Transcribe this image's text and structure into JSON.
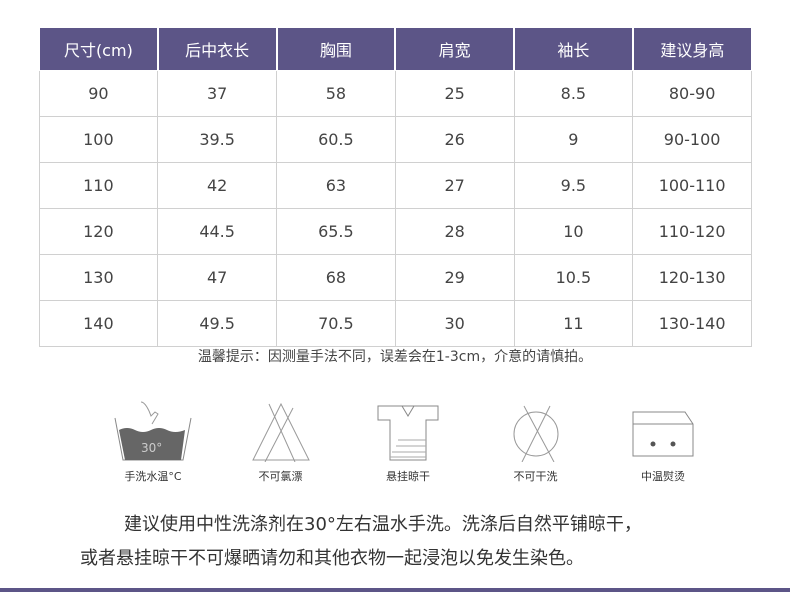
{
  "table": {
    "headers": [
      "尺寸(cm)",
      "后中衣长",
      "胸围",
      "肩宽",
      "袖长",
      "建议身高"
    ],
    "rows": [
      [
        "90",
        "37",
        "58",
        "25",
        "8.5",
        "80-90"
      ],
      [
        "100",
        "39.5",
        "60.5",
        "26",
        "9",
        "90-100"
      ],
      [
        "110",
        "42",
        "63",
        "27",
        "9.5",
        "100-110"
      ],
      [
        "120",
        "44.5",
        "65.5",
        "28",
        "10",
        "110-120"
      ],
      [
        "130",
        "47",
        "68",
        "29",
        "10.5",
        "120-130"
      ],
      [
        "140",
        "49.5",
        "70.5",
        "30",
        "11",
        "130-140"
      ]
    ]
  },
  "note": "温馨提示：因测量手法不同，误差会在1-3cm，介意的请慎拍。",
  "care_icons": [
    {
      "icon": "hand-wash-icon",
      "label": "手洗水温°C",
      "temp": "30°"
    },
    {
      "icon": "no-bleach-icon",
      "label": "不可氯漂"
    },
    {
      "icon": "hang-dry-icon",
      "label": "悬挂晾干"
    },
    {
      "icon": "no-dry-clean-icon",
      "label": "不可干洗"
    },
    {
      "icon": "iron-medium-icon",
      "label": "中温熨烫"
    }
  ],
  "care_text": [
    "建议使用中性洗涤剂在30°左右温水手洗。洗涤后自然平铺晾干，",
    "或者悬挂晾干不可爆晒请勿和其他衣物一起浸泡以免发生染色。"
  ],
  "colors": {
    "header": "#5c5587"
  }
}
